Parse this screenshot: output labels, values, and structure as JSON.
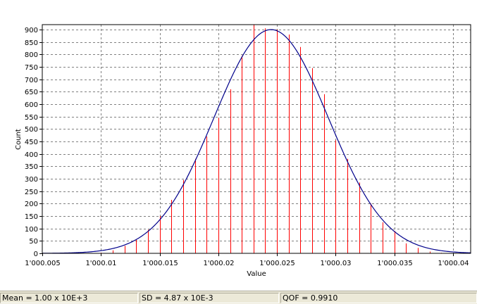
{
  "chart_data": {
    "type": "bar",
    "overlay": "normal-fit-curve",
    "xlabel": "Value",
    "ylabel": "Count",
    "xlim": [
      1000.005,
      1000.0415
    ],
    "ylim": [
      0,
      920
    ],
    "grid": true,
    "x_ticks": [
      1000.005,
      1000.01,
      1000.015,
      1000.02,
      1000.025,
      1000.03,
      1000.035,
      1000.04
    ],
    "x_tick_labels": [
      "1'000.005",
      "1'000.01",
      "1'000.015",
      "1'000.02",
      "1'000.025",
      "1'000.03",
      "1'000.035",
      "1'000.04"
    ],
    "y_ticks": [
      0,
      50,
      100,
      150,
      200,
      250,
      300,
      350,
      400,
      450,
      500,
      550,
      600,
      650,
      700,
      750,
      800,
      850,
      900
    ],
    "bars": {
      "x": [
        1000.01,
        1000.011,
        1000.012,
        1000.013,
        1000.014,
        1000.015,
        1000.016,
        1000.017,
        1000.018,
        1000.019,
        1000.02,
        1000.021,
        1000.022,
        1000.023,
        1000.024,
        1000.025,
        1000.026,
        1000.027,
        1000.028,
        1000.029,
        1000.03,
        1000.031,
        1000.032,
        1000.033,
        1000.034,
        1000.035,
        1000.036,
        1000.037,
        1000.038,
        1000.039
      ],
      "values": [
        3,
        12,
        30,
        55,
        95,
        150,
        215,
        295,
        380,
        470,
        545,
        660,
        795,
        930,
        905,
        900,
        880,
        830,
        745,
        640,
        455,
        380,
        285,
        200,
        125,
        90,
        40,
        22,
        7,
        2
      ]
    },
    "fit": {
      "mean": 1000.0245,
      "sd": 0.00487,
      "peak": 900
    },
    "colors": {
      "bars": "#ff0000",
      "curve": "#00008b",
      "grid": "#808080",
      "axis": "#000000"
    }
  },
  "status": {
    "mean": "Mean = 1.00 x 10E+3",
    "sd": "SD = 4.87 x 10E-3",
    "qof": "QOF = 0.9910"
  }
}
